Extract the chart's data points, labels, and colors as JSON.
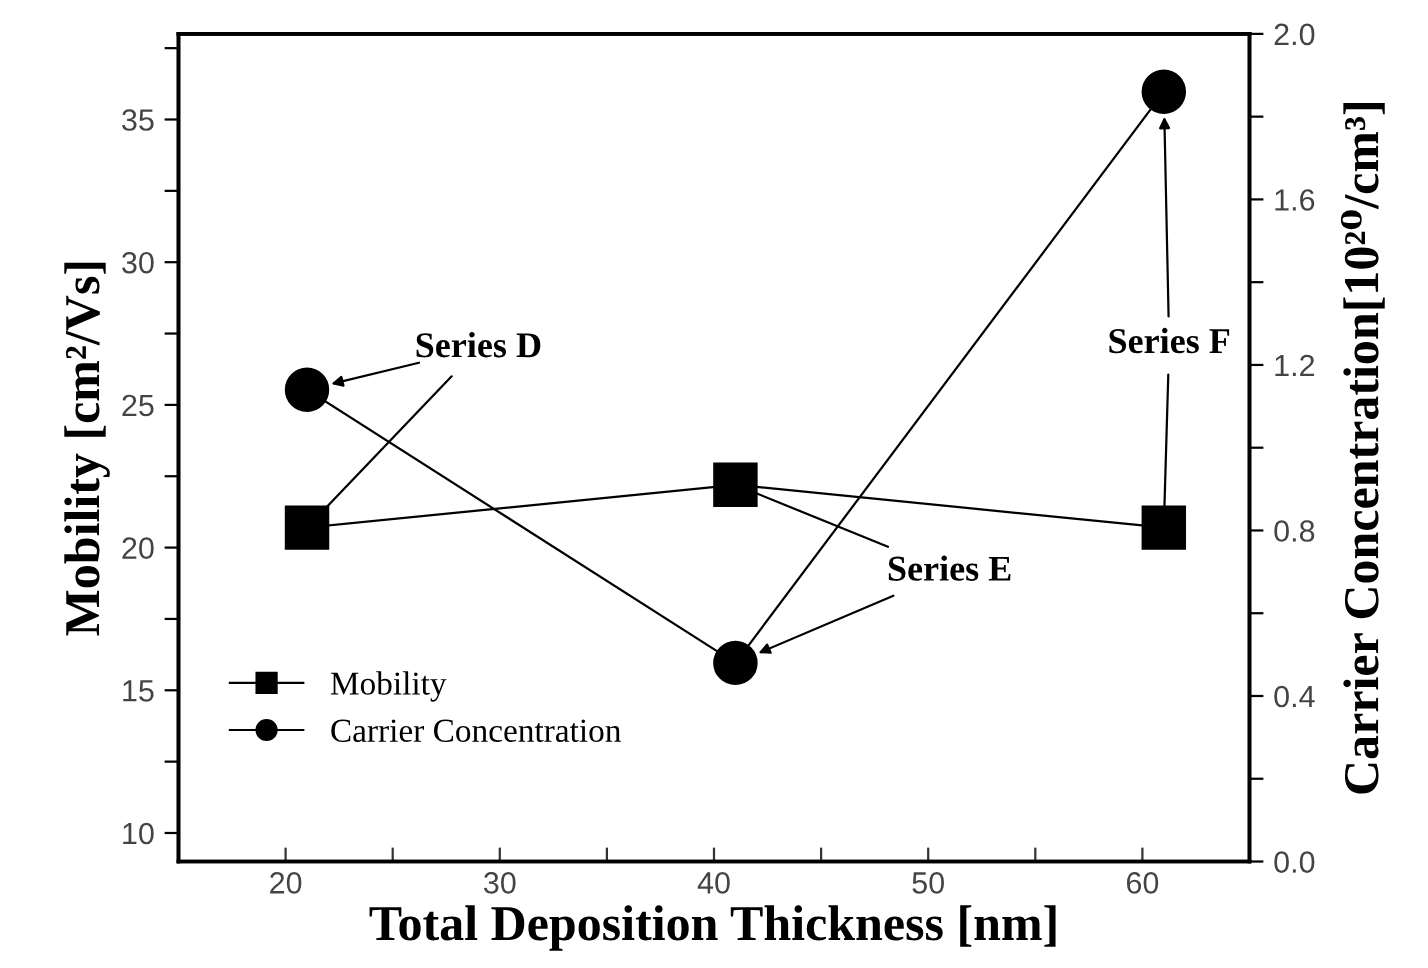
{
  "chart_data": {
    "type": "line",
    "xlabel": "Total Deposition Thickness [nm]",
    "ylabel": "Mobility [cm²/Vs]",
    "y2label": "Carrier Concentration[10²⁰/cm³]",
    "x": [
      21,
      41,
      61
    ],
    "series": [
      {
        "name": "Mobility",
        "color": "#000000",
        "values": [
          20.7,
          22.2,
          20.7
        ],
        "marker": "square"
      },
      {
        "name": "Carrier Concentration",
        "color": "#000000",
        "values": [
          1.14,
          0.48,
          1.86
        ],
        "marker": "circle",
        "axis": "y2"
      }
    ],
    "xlim": [
      15,
      65
    ],
    "xticks": [
      20,
      {
        "value": 25,
        "label": null
      },
      30,
      {
        "value": 35,
        "label": null
      },
      40,
      {
        "value": 45,
        "label": null
      },
      50,
      {
        "value": 55,
        "label": null
      },
      60
    ],
    "ylim": [
      9,
      38
    ],
    "yticks": [
      10,
      {
        "value": 12.5,
        "label": null
      },
      15,
      {
        "value": 17.5,
        "label": null
      },
      20,
      {
        "value": 22.5,
        "label": null
      },
      25,
      {
        "value": 27.5,
        "label": null
      },
      30,
      {
        "value": 32.5,
        "label": null
      },
      35,
      {
        "value": 37.5,
        "label": null
      }
    ],
    "y2lim": [
      0,
      2
    ],
    "y2ticks": [
      {
        "value": 0,
        "label": "0.0"
      },
      {
        "value": 0.2,
        "label": null
      },
      0.4,
      {
        "value": 0.6,
        "label": null
      },
      0.8,
      {
        "value": 1.0,
        "label": null
      },
      1.2,
      {
        "value": 1.4,
        "label": null
      },
      1.6,
      {
        "value": 1.8,
        "label": null
      },
      {
        "value": 2.0,
        "label": "2.0"
      }
    ],
    "annotations": [
      {
        "text": "Series D",
        "x": 21,
        "y": 20.7
      },
      {
        "text": "Series E",
        "x": 41,
        "y": 22.2
      },
      {
        "text": "Series F",
        "x": 61,
        "y": 20.7
      }
    ],
    "legend": "bottom left",
    "grid": false,
    "line_style": "solid"
  }
}
